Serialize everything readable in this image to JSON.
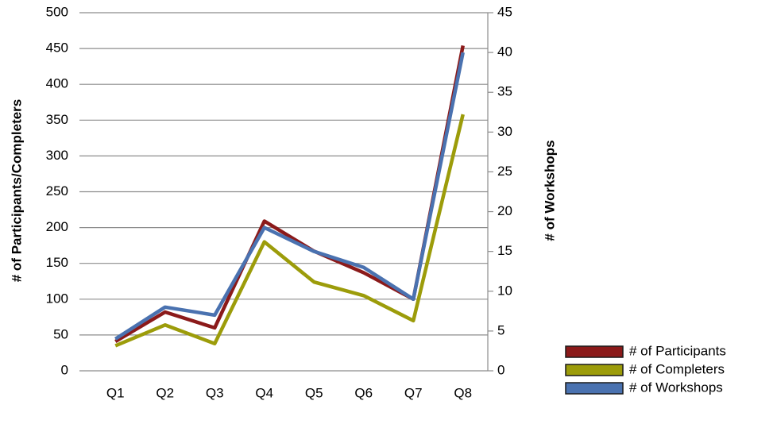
{
  "chart_data": {
    "type": "line",
    "ylabel": "# of Participants/Completers",
    "y2label": "# of Workshops",
    "categories": [
      "Q1",
      "Q2",
      "Q3",
      "Q4",
      "Q5",
      "Q6",
      "Q7",
      "Q8"
    ],
    "series": [
      {
        "name": "# of Participants",
        "color": "#8b1a1a",
        "values": [
          41,
          82,
          60,
          209,
          167,
          137,
          100,
          454
        ]
      },
      {
        "name": "# of Completers",
        "color": "#9c9c0a",
        "values": [
          35,
          64,
          38,
          180,
          124,
          105,
          70,
          358
        ]
      },
      {
        "name": "# of Workshops",
        "color": "#4a72b0",
        "axis": "y2",
        "values": [
          4,
          8,
          7,
          18,
          15,
          13,
          9,
          40
        ]
      }
    ],
    "ylim": [
      0,
      500
    ],
    "yticks": [
      0,
      50,
      100,
      150,
      200,
      250,
      300,
      350,
      400,
      450,
      500
    ],
    "y2lim": [
      0,
      45
    ],
    "y2ticks": [
      0,
      5,
      10,
      15,
      20,
      25,
      30,
      35,
      40,
      45
    ],
    "grid": true,
    "legend": "lower right"
  }
}
